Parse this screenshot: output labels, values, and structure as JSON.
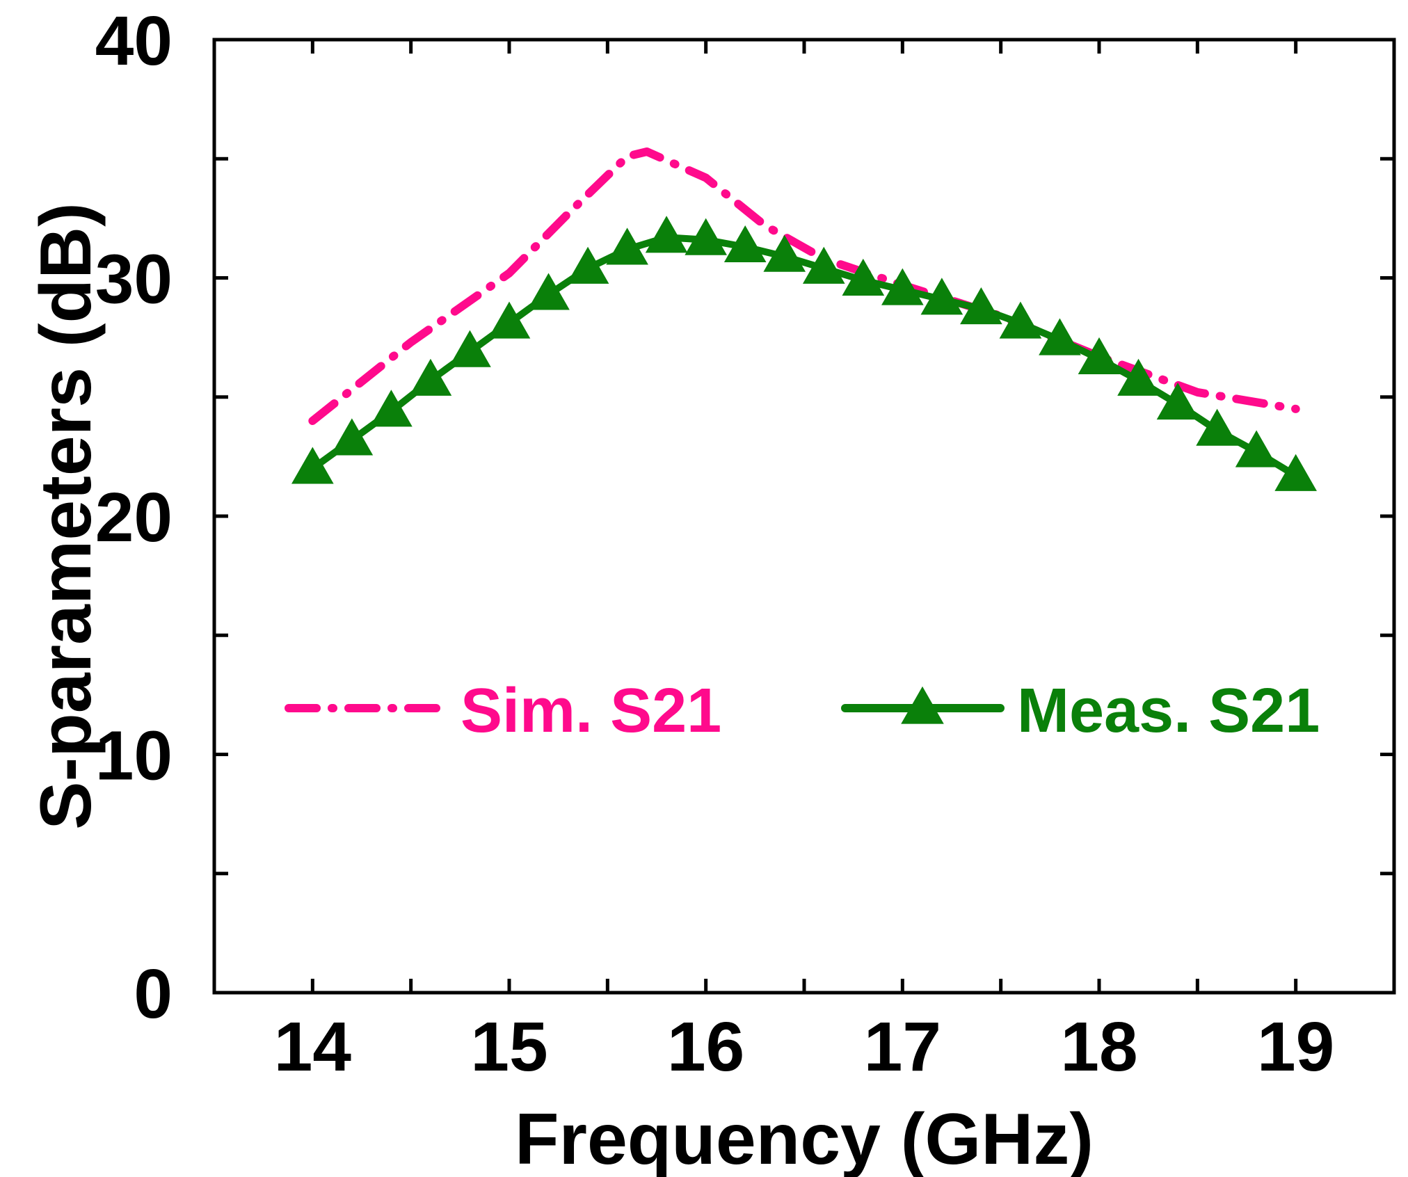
{
  "chart_data": {
    "type": "line",
    "title": "",
    "xlabel": "Frequency (GHz)",
    "ylabel": "S-parameters (dB)",
    "xlim": [
      13.5,
      19.5
    ],
    "ylim": [
      0,
      40
    ],
    "x_major_ticks": [
      14,
      15,
      16,
      17,
      18,
      19
    ],
    "x_tick_labels": [
      "14",
      "15",
      "16",
      "17",
      "18",
      "19"
    ],
    "x_minor_ticks": [
      14.5,
      15.5,
      16.5,
      17.5,
      18.5
    ],
    "y_major_ticks": [
      0,
      10,
      20,
      30,
      40
    ],
    "y_tick_labels": [
      "0",
      "10",
      "20",
      "30",
      "40"
    ],
    "y_minor_ticks": [
      5,
      15,
      25,
      35
    ],
    "grid": false,
    "legend_position": "center",
    "series": [
      {
        "name": "Sim. S21",
        "color": "#FF0A8C",
        "style": "dash-dot",
        "marker": "none",
        "x": [
          14.0,
          14.5,
          15.0,
          15.3,
          15.6,
          15.7,
          16.0,
          16.3,
          16.6,
          17.0,
          17.5,
          18.0,
          18.5,
          19.0
        ],
        "y": [
          24.0,
          27.3,
          30.2,
          32.7,
          35.1,
          35.3,
          34.2,
          32.2,
          30.8,
          29.7,
          28.4,
          26.7,
          25.2,
          24.5
        ]
      },
      {
        "name": "Meas. S21",
        "color": "#0A800A",
        "style": "solid",
        "marker": "triangle",
        "x": [
          14.0,
          14.2,
          14.4,
          14.6,
          14.8,
          15.0,
          15.2,
          15.4,
          15.6,
          15.8,
          16.0,
          16.2,
          16.4,
          16.6,
          16.8,
          17.0,
          17.2,
          17.4,
          17.6,
          17.8,
          18.0,
          18.2,
          18.4,
          18.6,
          18.8,
          19.0
        ],
        "y": [
          22.0,
          23.2,
          24.4,
          25.7,
          26.9,
          28.1,
          29.3,
          30.4,
          31.2,
          31.7,
          31.6,
          31.3,
          30.9,
          30.4,
          29.9,
          29.5,
          29.1,
          28.7,
          28.1,
          27.4,
          26.6,
          25.7,
          24.7,
          23.6,
          22.7,
          21.7
        ]
      }
    ]
  }
}
